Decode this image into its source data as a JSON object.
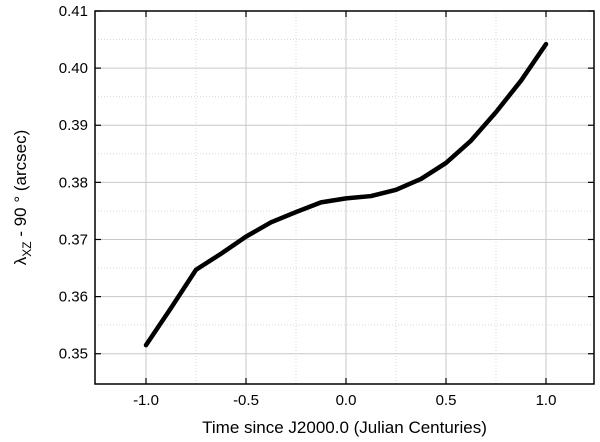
{
  "chart_data": {
    "type": "line",
    "xlabel": "Time since J2000.0 (Julian Centuries)",
    "ylabel": {
      "main": "λ",
      "sub": "XZ",
      "rest": " - 90 ° (arcsec)"
    },
    "x": [
      -1.0,
      -0.875,
      -0.75,
      -0.625,
      -0.5,
      -0.375,
      -0.25,
      -0.125,
      0.0,
      0.125,
      0.25,
      0.375,
      0.5,
      0.625,
      0.75,
      0.875,
      1.0
    ],
    "series": [
      {
        "color": "#000000",
        "values": [
          0.3515,
          0.358,
          0.3647,
          0.3675,
          0.3705,
          0.373,
          0.3748,
          0.3765,
          0.3772,
          0.3776,
          0.3787,
          0.3806,
          0.3834,
          0.3873,
          0.3923,
          0.3978,
          0.4042
        ]
      }
    ],
    "xlim": [
      -1.255,
      1.24
    ],
    "ylim": [
      0.3447,
      0.41
    ],
    "xticks": [
      {
        "value": -1,
        "label": "-1.0"
      },
      -0.5,
      {
        "value": 0,
        "label": "0.0"
      },
      0.5,
      {
        "value": 1,
        "label": "1.0"
      }
    ],
    "yticks": [
      0.35,
      0.36,
      0.37,
      0.38,
      0.39,
      {
        "value": 0.4,
        "label": "0.40"
      },
      0.41
    ],
    "grid": true,
    "minor_grid": true
  }
}
